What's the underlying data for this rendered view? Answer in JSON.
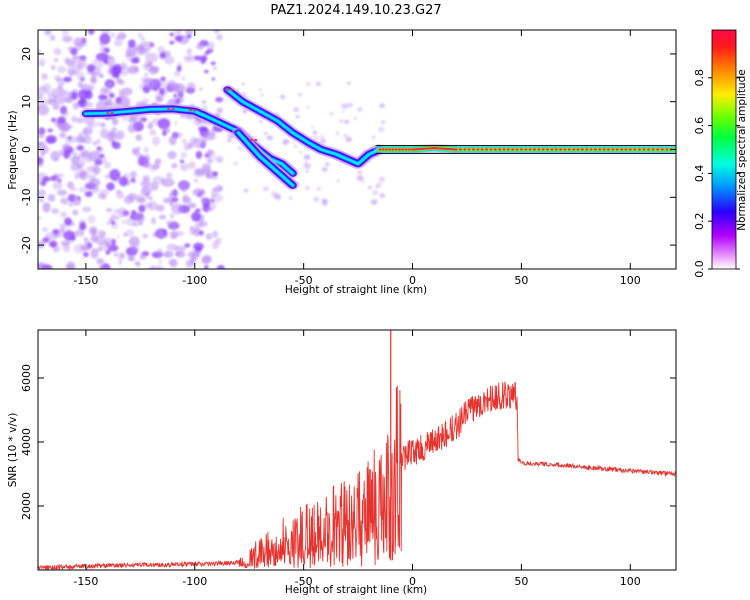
{
  "figure": {
    "title": "PAZ1.2024.149.10.23.G27"
  },
  "colors": {
    "snr_line": "#e8322d",
    "track_hot": "#ff1b3c",
    "track_mid": "#00e5ff",
    "track_low": "#5a00ff",
    "scatter_faint": "#b98ff5",
    "ref_line": "#000000"
  },
  "chart_data": [
    {
      "id": "spectrogram",
      "type": "heatmap",
      "title": "PAZ1.2024.149.10.23.G27",
      "xlabel": "Height of straight line (km)",
      "ylabel": "Frequency (Hz)",
      "xlim": [
        -172,
        121
      ],
      "ylim": [
        -25,
        25
      ],
      "x_ticks": [
        -150,
        -100,
        -50,
        0,
        50,
        100
      ],
      "x_tick_labels": [
        "-150",
        "-100",
        "-50",
        "0",
        "50",
        "100"
      ],
      "y_ticks": [
        -20,
        -10,
        0,
        10,
        20
      ],
      "y_tick_labels": [
        "-20",
        "-10",
        "0",
        "10",
        "20"
      ],
      "colorbar": {
        "label": "Normalized spectral amplitude",
        "range": [
          0,
          1
        ],
        "colormap": "gist_rainbow_r",
        "ticks": [
          0.0,
          0.2,
          0.4,
          0.6,
          0.8
        ],
        "tick_labels": [
          "0.0",
          "0.2",
          "0.4",
          "0.6",
          "0.8"
        ]
      },
      "tracks": [
        {
          "name": "main",
          "points": [
            [
              -150,
              7.5
            ],
            [
              -140,
              7.6
            ],
            [
              -130,
              8.0
            ],
            [
              -120,
              8.4
            ],
            [
              -110,
              8.5
            ],
            [
              -100,
              8.0
            ],
            [
              -95,
              7.0
            ],
            [
              -88,
              5.5
            ],
            [
              -80,
              3.8
            ],
            [
              -72,
              0.5
            ],
            [
              -65,
              -2.0
            ],
            [
              -60,
              -3.0
            ],
            [
              -55,
              -5.0
            ]
          ]
        },
        {
          "name": "upper",
          "points": [
            [
              -85,
              12.5
            ],
            [
              -78,
              10.0
            ],
            [
              -70,
              8.0
            ],
            [
              -62,
              6.0
            ],
            [
              -55,
              3.5
            ],
            [
              -48,
              1.5
            ],
            [
              -42,
              0.0
            ],
            [
              -35,
              -1.0
            ],
            [
              -30,
              -2.0
            ],
            [
              -25,
              -3.0
            ],
            [
              -20,
              -1.0
            ],
            [
              -15,
              0.0
            ]
          ]
        },
        {
          "name": "lower",
          "points": [
            [
              -80,
              3.5
            ],
            [
              -75,
              1.0
            ],
            [
              -70,
              -1.5
            ],
            [
              -65,
              -3.5
            ],
            [
              -60,
              -5.5
            ],
            [
              -55,
              -7.5
            ]
          ]
        },
        {
          "name": "tone",
          "points": [
            [
              -15,
              0.0
            ],
            [
              0,
              0.0
            ],
            [
              10,
              0.3
            ],
            [
              20,
              0.0
            ],
            [
              40,
              0.0
            ],
            [
              60,
              0.0
            ],
            [
              80,
              0.0
            ],
            [
              100,
              0.0
            ],
            [
              121,
              0.0
            ]
          ]
        }
      ],
      "reference_line": [
        {
          "y": 0.8
        },
        {
          "y": -0.8
        }
      ]
    },
    {
      "id": "snr",
      "type": "line",
      "xlabel": "Height of straight line (km)",
      "ylabel": "SNR (10 * v/v)",
      "xlim": [
        -172,
        121
      ],
      "ylim": [
        0,
        7500
      ],
      "x_ticks": [
        -150,
        -100,
        -50,
        0,
        50,
        100
      ],
      "x_tick_labels": [
        "-150",
        "-100",
        "-50",
        "0",
        "50",
        "100"
      ],
      "y_ticks": [
        2000,
        4000,
        6000
      ],
      "y_tick_labels": [
        "2000",
        "4000",
        "6000"
      ],
      "series": [
        {
          "x": [
            -172,
            -160,
            -150,
            -140,
            -130,
            -120,
            -110,
            -100,
            -90,
            -80,
            -75,
            -70,
            -65,
            -60,
            -55,
            -50,
            -45,
            -40,
            -35,
            -30,
            -25,
            -20,
            -15,
            -12,
            -10,
            -8,
            -5,
            0,
            5,
            10,
            15,
            20,
            25,
            30,
            35,
            40,
            45,
            48,
            48.5,
            50,
            60,
            70,
            80,
            90,
            100,
            110,
            121
          ],
          "y": [
            80,
            90,
            120,
            140,
            150,
            160,
            170,
            190,
            200,
            250,
            400,
            550,
            700,
            900,
            1000,
            1100,
            1200,
            1350,
            1500,
            1550,
            1700,
            1900,
            2200,
            2800,
            1500,
            3200,
            3500,
            3700,
            3800,
            4000,
            4200,
            4500,
            4900,
            5200,
            5350,
            5450,
            5450,
            5400,
            3450,
            3350,
            3320,
            3280,
            3200,
            3150,
            3100,
            3050,
            3000
          ]
        }
      ]
    }
  ]
}
